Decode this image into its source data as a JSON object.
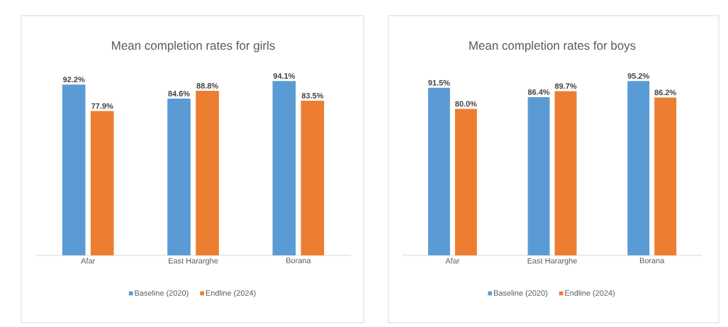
{
  "chart_data": [
    {
      "type": "bar",
      "title": "Mean completion rates for girls",
      "categories": [
        "Afar",
        "East Hararghe",
        "Borana"
      ],
      "legend": "bottom",
      "series": [
        {
          "name": "Baseline (2020)",
          "color": "#5b9bd5",
          "values": [
            92.2,
            84.6,
            94.1
          ],
          "value_labels": [
            "92.2%",
            "84.6%",
            "94.1%"
          ]
        },
        {
          "name": "Endline (2024)",
          "color": "#ed7d31",
          "values": [
            77.9,
            88.8,
            83.5
          ],
          "value_labels": [
            "77.9%",
            "88.8%",
            "83.5%"
          ]
        }
      ]
    },
    {
      "type": "bar",
      "title": "Mean completion rates for boys",
      "categories": [
        "Afar",
        "East Hararghe",
        "Borana"
      ],
      "legend": "bottom",
      "series": [
        {
          "name": "Baseline (2020)",
          "color": "#5b9bd5",
          "values": [
            91.5,
            86.4,
            95.2
          ],
          "value_labels": [
            "91.5%",
            "86.4%",
            "95.2%"
          ]
        },
        {
          "name": "Endline (2024)",
          "color": "#ed7d31",
          "values": [
            80.0,
            89.7,
            86.2
          ],
          "value_labels": [
            "80.0%",
            "89.7%",
            "86.2%"
          ]
        }
      ]
    }
  ]
}
